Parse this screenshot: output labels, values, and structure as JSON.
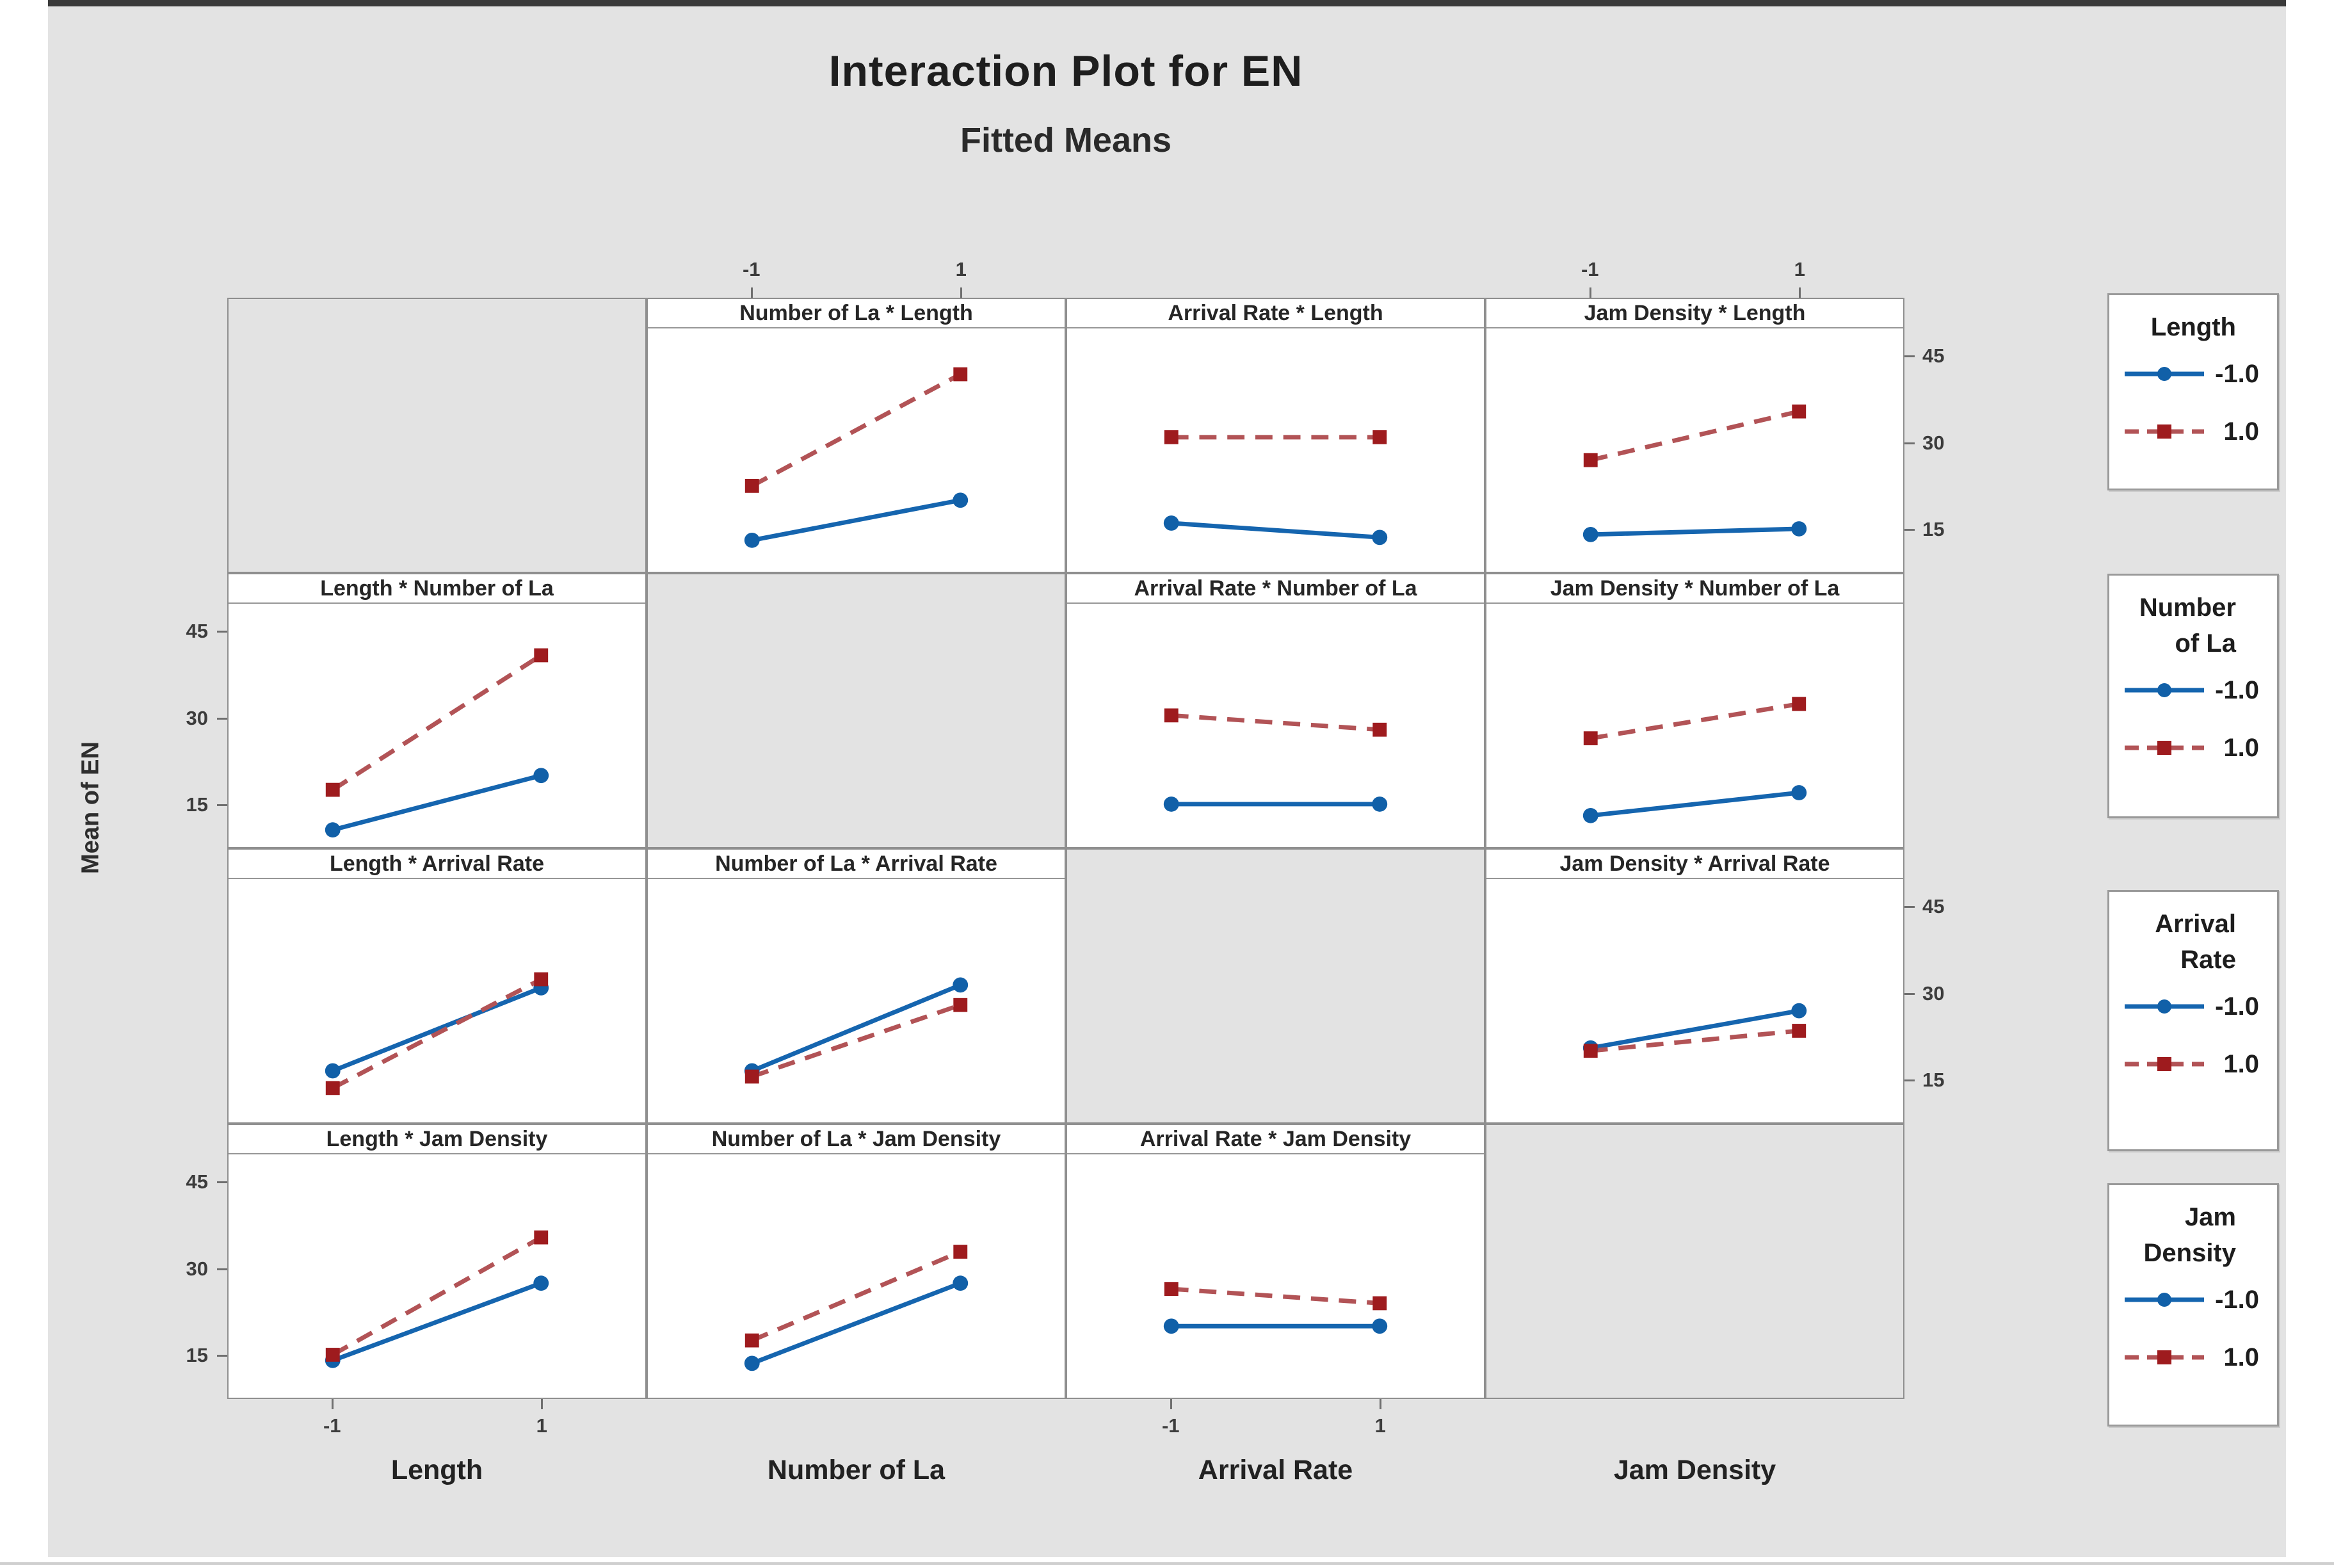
{
  "page": {
    "title": "Interaction Plot for EN",
    "subtitle": "Fitted Means",
    "ylabel": "Mean of EN"
  },
  "chart_data": {
    "type": "line",
    "chart_kind": "minitab-interaction-plot-matrix",
    "title": "Interaction Plot for EN",
    "subtitle": "Fitted Means",
    "ylabel": "Mean of EN",
    "factors": [
      "Length",
      "Number of La",
      "Arrival Rate",
      "Jam Density"
    ],
    "x_levels": [
      "-1",
      "1"
    ],
    "y_ticks": [
      15,
      30,
      45
    ],
    "y_range": [
      7.5,
      50
    ],
    "grid": false,
    "colors": {
      "neg_line": "#1565af",
      "neg_marker": "#1160a8",
      "pos_line": "#b25356",
      "pos_marker": "#9e1b1e",
      "figure_bg": "#e3e3e3",
      "panel_bg": "#ffffff",
      "border": "#8f8f8f"
    },
    "series_levels": {
      "neg": "-1.0",
      "pos": "1.0"
    },
    "panels": [
      {
        "row": 0,
        "col": 1,
        "title": "Number of La * Length",
        "x_factor": "Number of La",
        "line_factor": "Length",
        "neg": [
          13,
          20
        ],
        "pos": [
          22.5,
          42
        ]
      },
      {
        "row": 0,
        "col": 2,
        "title": "Arrival Rate * Length",
        "x_factor": "Arrival Rate",
        "line_factor": "Length",
        "neg": [
          16,
          13.5
        ],
        "pos": [
          31,
          31
        ]
      },
      {
        "row": 0,
        "col": 3,
        "title": "Jam Density * Length",
        "x_factor": "Jam Density",
        "line_factor": "Length",
        "neg": [
          14,
          15
        ],
        "pos": [
          27,
          35.5
        ]
      },
      {
        "row": 1,
        "col": 0,
        "title": "Length * Number of La",
        "x_factor": "Length",
        "line_factor": "Number of La",
        "neg": [
          10.5,
          20
        ],
        "pos": [
          17.5,
          41
        ]
      },
      {
        "row": 1,
        "col": 2,
        "title": "Arrival Rate * Number of La",
        "x_factor": "Arrival Rate",
        "line_factor": "Number of La",
        "neg": [
          15,
          15
        ],
        "pos": [
          30.5,
          28
        ]
      },
      {
        "row": 1,
        "col": 3,
        "title": "Jam Density * Number of La",
        "x_factor": "Jam Density",
        "line_factor": "Number of La",
        "neg": [
          13,
          17
        ],
        "pos": [
          26.5,
          32.5
        ]
      },
      {
        "row": 2,
        "col": 0,
        "title": "Length * Arrival Rate",
        "x_factor": "Length",
        "line_factor": "Arrival Rate",
        "neg": [
          16.5,
          31
        ],
        "pos": [
          13.5,
          32.5
        ]
      },
      {
        "row": 2,
        "col": 1,
        "title": "Number of La * Arrival Rate",
        "x_factor": "Number of La",
        "line_factor": "Arrival Rate",
        "neg": [
          16.5,
          31.5
        ],
        "pos": [
          15.5,
          28
        ]
      },
      {
        "row": 2,
        "col": 3,
        "title": "Jam Density * Arrival Rate",
        "x_factor": "Jam Density",
        "line_factor": "Arrival Rate",
        "neg": [
          20.5,
          27
        ],
        "pos": [
          20,
          23.5
        ]
      },
      {
        "row": 3,
        "col": 0,
        "title": "Length * Jam Density",
        "x_factor": "Length",
        "line_factor": "Jam Density",
        "neg": [
          14,
          27.5
        ],
        "pos": [
          15,
          35.5
        ]
      },
      {
        "row": 3,
        "col": 1,
        "title": "Number of La * Jam Density",
        "x_factor": "Number of La",
        "line_factor": "Jam Density",
        "neg": [
          13.5,
          27.5
        ],
        "pos": [
          17.5,
          33
        ]
      },
      {
        "row": 3,
        "col": 2,
        "title": "Arrival Rate * Jam Density",
        "x_factor": "Arrival Rate",
        "line_factor": "Jam Density",
        "neg": [
          20,
          20
        ],
        "pos": [
          26.5,
          24
        ]
      }
    ],
    "axis_layout": {
      "left_tick_rows": [
        1,
        3
      ],
      "right_tick_rows": [
        0,
        2
      ],
      "top_tick_cols": [
        1,
        3
      ],
      "bottom_tick_cols": [
        0,
        2
      ],
      "legend_position": "right"
    },
    "legends": [
      {
        "title_lines": [
          "Length"
        ],
        "entries": [
          {
            "label": "-1.0",
            "series": "neg"
          },
          {
            "label": "1.0",
            "series": "pos"
          }
        ]
      },
      {
        "title_lines": [
          "Number",
          "of La"
        ],
        "entries": [
          {
            "label": "-1.0",
            "series": "neg"
          },
          {
            "label": "1.0",
            "series": "pos"
          }
        ]
      },
      {
        "title_lines": [
          "Arrival",
          "Rate"
        ],
        "entries": [
          {
            "label": "-1.0",
            "series": "neg"
          },
          {
            "label": "1.0",
            "series": "pos"
          }
        ]
      },
      {
        "title_lines": [
          "Jam",
          "Density"
        ],
        "entries": [
          {
            "label": "-1.0",
            "series": "neg"
          },
          {
            "label": "1.0",
            "series": "pos"
          }
        ]
      }
    ]
  }
}
